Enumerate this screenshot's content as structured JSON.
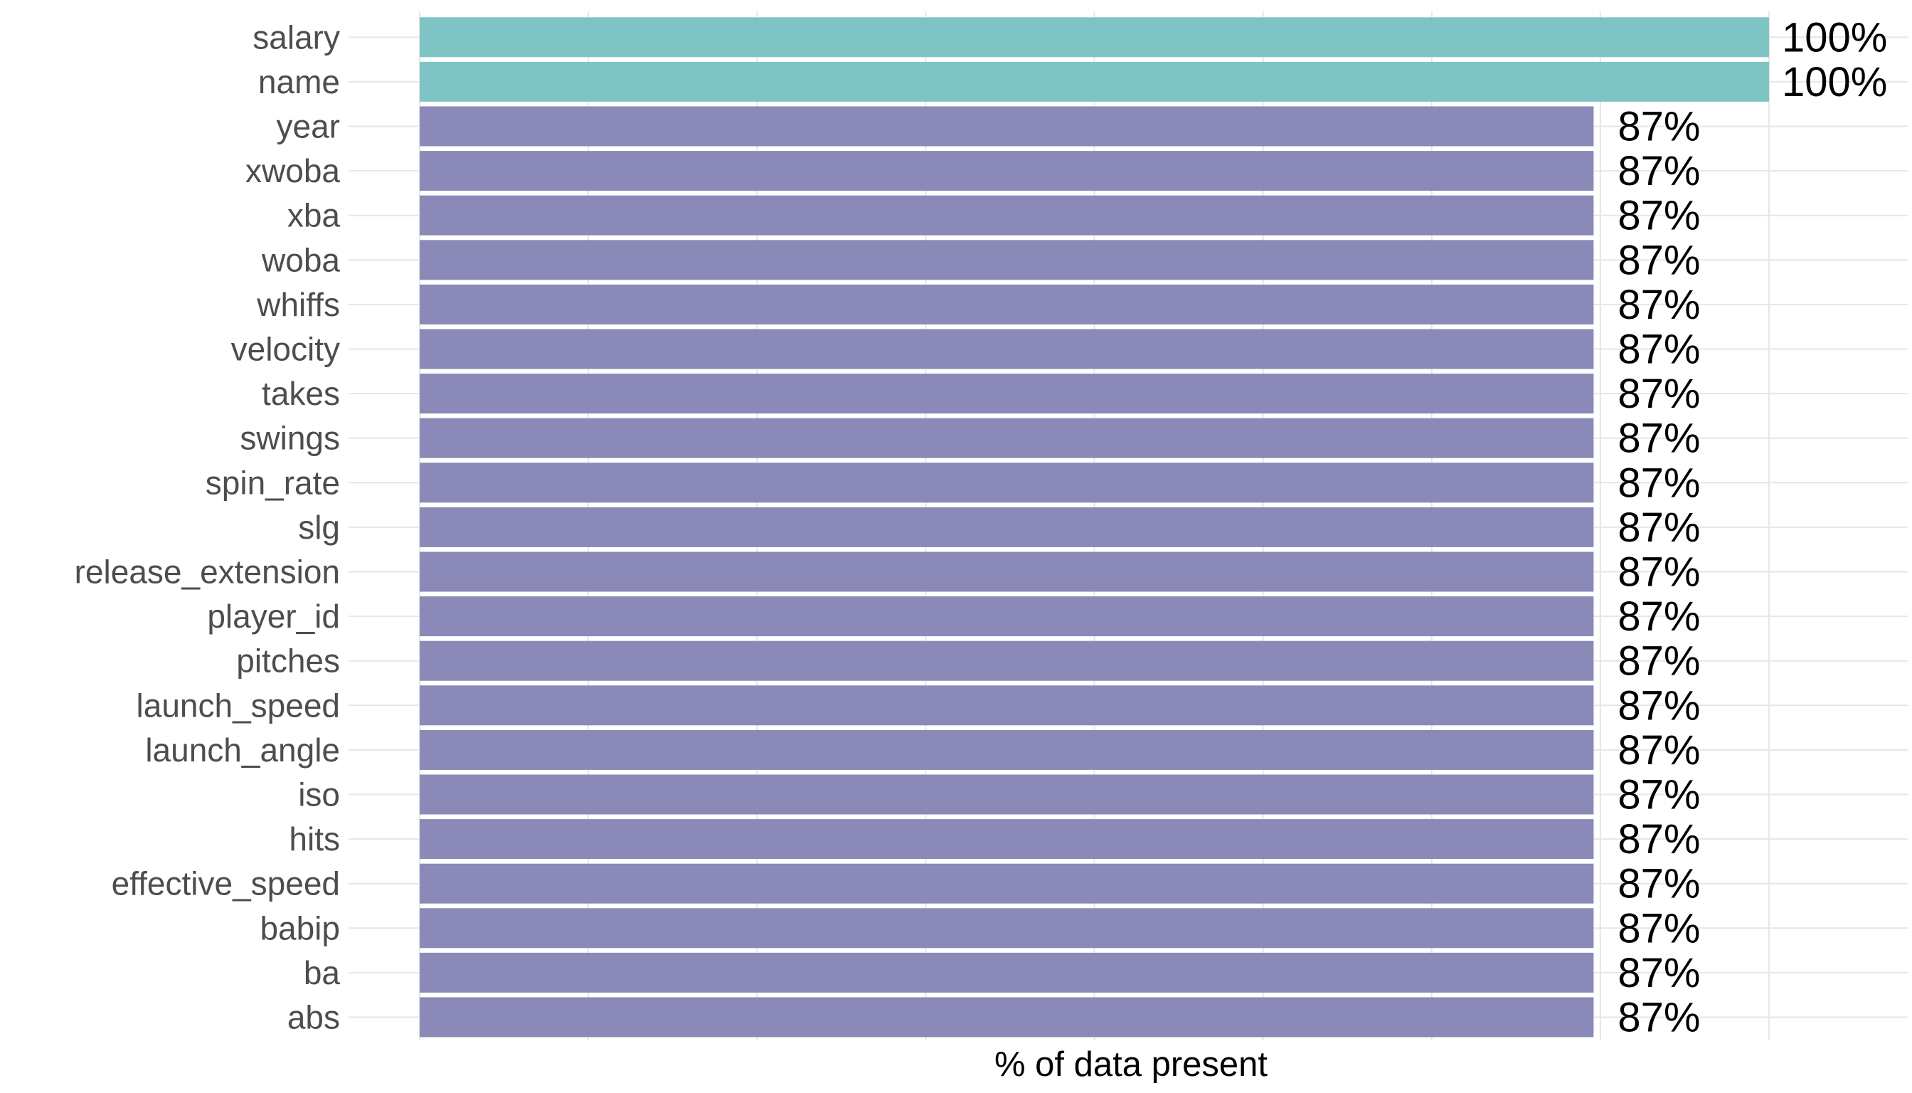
{
  "chart_data": {
    "type": "bar",
    "orientation": "horizontal",
    "title": "",
    "xlabel": "% of data present",
    "ylabel": "",
    "xlim": [
      0,
      100
    ],
    "grid": true,
    "legend": "none",
    "categories": [
      "salary",
      "name",
      "year",
      "xwoba",
      "xba",
      "woba",
      "whiffs",
      "velocity",
      "takes",
      "swings",
      "spin_rate",
      "slg",
      "release_extension",
      "player_id",
      "pitches",
      "launch_speed",
      "launch_angle",
      "iso",
      "hits",
      "effective_speed",
      "babip",
      "ba",
      "abs"
    ],
    "values": [
      100,
      100,
      87,
      87,
      87,
      87,
      87,
      87,
      87,
      87,
      87,
      87,
      87,
      87,
      87,
      87,
      87,
      87,
      87,
      87,
      87,
      87,
      87
    ],
    "labels": [
      "100%",
      "100%",
      "87%",
      "87%",
      "87%",
      "87%",
      "87%",
      "87%",
      "87%",
      "87%",
      "87%",
      "87%",
      "87%",
      "87%",
      "87%",
      "87%",
      "87%",
      "87%",
      "87%",
      "87%",
      "87%",
      "87%",
      "87%"
    ],
    "colors": {
      "complete": "#7fc4c4",
      "partial": "#8a89b7",
      "grid": "#e6e6e6"
    }
  }
}
